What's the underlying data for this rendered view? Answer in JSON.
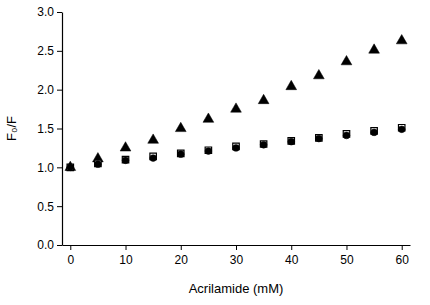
{
  "chart_data": {
    "type": "scatter",
    "x_label": "Acrilamide (mM)",
    "y_label": "F₀/F",
    "x": [
      0,
      5,
      10,
      15,
      20,
      25,
      30,
      35,
      40,
      45,
      50,
      55,
      60
    ],
    "series": [
      {
        "color": "#000000",
        "marker": "triangle",
        "values": [
          1.0,
          1.11,
          1.25,
          1.35,
          1.5,
          1.62,
          1.75,
          1.86,
          2.04,
          2.18,
          2.36,
          2.51,
          2.63
        ]
      },
      {
        "color": "#000000",
        "marker": "open-square",
        "values": [
          1.0,
          1.05,
          1.1,
          1.14,
          1.18,
          1.22,
          1.27,
          1.3,
          1.34,
          1.38,
          1.43,
          1.47,
          1.51
        ]
      },
      {
        "color": "#000000",
        "marker": "circle",
        "values": [
          1.0,
          1.04,
          1.09,
          1.12,
          1.17,
          1.21,
          1.25,
          1.29,
          1.33,
          1.37,
          1.41,
          1.45,
          1.49
        ]
      }
    ],
    "xlim": [
      -1.5,
      61.5
    ],
    "xticks": [
      0,
      10,
      20,
      30,
      40,
      50,
      60
    ],
    "ylim": [
      0,
      3
    ],
    "yticks": [
      {
        "value": 0,
        "label": "0.0"
      },
      0.5,
      {
        "value": 1,
        "label": "1.0"
      },
      1.5,
      {
        "value": 2,
        "label": "2.0"
      },
      2.5,
      {
        "value": 3,
        "label": "3.0"
      }
    ],
    "grid": false
  }
}
